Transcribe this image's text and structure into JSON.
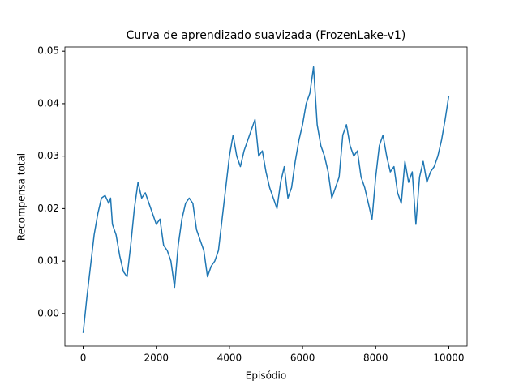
{
  "chart_data": {
    "type": "line",
    "title": "Curva de aprendizado suavizada (FrozenLake-v1)",
    "x_label": "Episódio",
    "y_label": "Recompensa total",
    "x": [
      0,
      100,
      200,
      300,
      400,
      500,
      600,
      700,
      750,
      800,
      900,
      1000,
      1100,
      1200,
      1300,
      1400,
      1500,
      1600,
      1700,
      1800,
      1900,
      2000,
      2100,
      2200,
      2300,
      2400,
      2500,
      2600,
      2700,
      2800,
      2900,
      3000,
      3100,
      3200,
      3300,
      3400,
      3500,
      3600,
      3700,
      3800,
      3900,
      4000,
      4100,
      4200,
      4300,
      4400,
      4500,
      4600,
      4700,
      4800,
      4900,
      5000,
      5100,
      5200,
      5300,
      5400,
      5500,
      5600,
      5700,
      5800,
      5900,
      6000,
      6100,
      6200,
      6300,
      6400,
      6500,
      6600,
      6700,
      6800,
      6900,
      7000,
      7100,
      7200,
      7300,
      7400,
      7500,
      7600,
      7700,
      7800,
      7900,
      8000,
      8100,
      8200,
      8300,
      8400,
      8500,
      8600,
      8700,
      8800,
      8900,
      9000,
      9100,
      9200,
      9300,
      9400,
      9500,
      9600,
      9700,
      9800,
      9900,
      10000
    ],
    "series": [
      {
        "name": "Recompensa",
        "color": "#1f77b4",
        "values": [
          -0.0037,
          0.003,
          0.009,
          0.015,
          0.019,
          0.022,
          0.0225,
          0.021,
          0.022,
          0.017,
          0.015,
          0.011,
          0.008,
          0.007,
          0.013,
          0.02,
          0.025,
          0.022,
          0.023,
          0.021,
          0.019,
          0.017,
          0.018,
          0.013,
          0.012,
          0.01,
          0.005,
          0.013,
          0.018,
          0.021,
          0.022,
          0.021,
          0.016,
          0.014,
          0.012,
          0.007,
          0.009,
          0.01,
          0.012,
          0.018,
          0.024,
          0.03,
          0.034,
          0.03,
          0.028,
          0.031,
          0.033,
          0.035,
          0.037,
          0.03,
          0.031,
          0.027,
          0.024,
          0.022,
          0.02,
          0.025,
          0.028,
          0.022,
          0.024,
          0.029,
          0.033,
          0.036,
          0.04,
          0.042,
          0.047,
          0.036,
          0.032,
          0.03,
          0.027,
          0.022,
          0.024,
          0.026,
          0.034,
          0.036,
          0.032,
          0.03,
          0.031,
          0.026,
          0.024,
          0.021,
          0.018,
          0.026,
          0.032,
          0.034,
          0.03,
          0.027,
          0.028,
          0.023,
          0.021,
          0.029,
          0.025,
          0.027,
          0.017,
          0.026,
          0.029,
          0.025,
          0.027,
          0.028,
          0.03,
          0.033,
          0.037,
          0.0415
        ]
      }
    ],
    "xlim": [
      -500,
      10500
    ],
    "ylim": [
      -0.0062,
      0.0508
    ],
    "xticks": [
      0,
      2000,
      4000,
      6000,
      8000,
      10000
    ],
    "yticks": [
      {
        "value": 0,
        "label": "0.00"
      },
      {
        "value": 0.01,
        "label": "0.01"
      },
      {
        "value": 0.02,
        "label": "0.02"
      },
      {
        "value": 0.03,
        "label": "0.03"
      },
      {
        "value": 0.04,
        "label": "0.04"
      },
      {
        "value": 0.05,
        "label": "0.05"
      }
    ]
  }
}
